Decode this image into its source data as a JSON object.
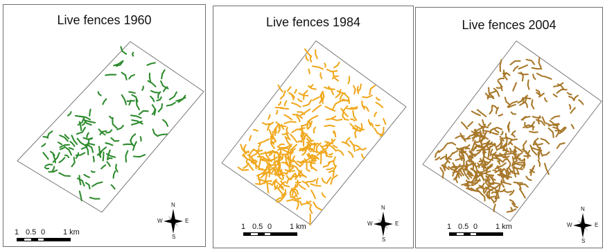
{
  "panels": [
    {
      "title": "Live fences 1960",
      "color": "#2e8b2e",
      "scale_labels": [
        "1",
        "0.5",
        "0",
        "1 km"
      ]
    },
    {
      "title": "Live fences 1984",
      "color": "#f0a81e",
      "scale_labels": [
        "1",
        "0.5",
        "0",
        "1 km"
      ]
    },
    {
      "title": "Live fences 2004",
      "color": "#a8782a",
      "scale_labels": [
        "1",
        "0.5",
        "0",
        "1 km"
      ]
    }
  ],
  "compass": {
    "north": "N",
    "south": "S",
    "east": "E",
    "west": "W"
  }
}
